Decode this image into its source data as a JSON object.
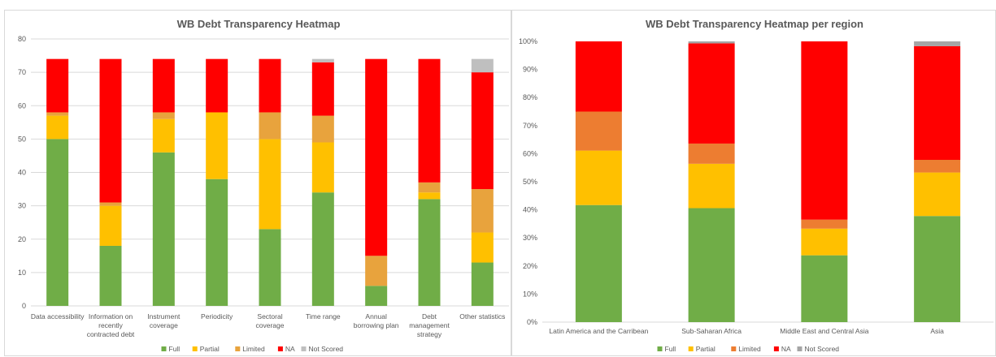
{
  "chart_data": [
    {
      "type": "bar",
      "stacked": true,
      "title": "WB Debt Transparency Heatmap",
      "xlabel": "",
      "ylabel": "",
      "ylim": [
        0,
        80
      ],
      "yticks": [
        0,
        10,
        20,
        30,
        40,
        50,
        60,
        70,
        80
      ],
      "grid": true,
      "legend": "bottom",
      "categories": [
        [
          "Data accessibility"
        ],
        [
          "Information on",
          "recently",
          "contracted debt"
        ],
        [
          "Instrument",
          "coverage"
        ],
        [
          "Periodicity"
        ],
        [
          "Sectoral",
          "coverage"
        ],
        [
          "Time range"
        ],
        [
          "Annual",
          "borrowing plan"
        ],
        [
          "Debt",
          "management",
          "strategy"
        ],
        [
          "Other statistics"
        ]
      ],
      "series": [
        {
          "name": "Full",
          "color": "#70ad47",
          "values": [
            50,
            18,
            46,
            38,
            23,
            34,
            6,
            32,
            13
          ]
        },
        {
          "name": "Partial",
          "color": "#ffc000",
          "values": [
            7,
            12,
            10,
            20,
            27,
            15,
            0,
            2,
            9
          ]
        },
        {
          "name": "Limited",
          "color": "#e8a33d",
          "values": [
            1,
            1,
            2,
            0,
            8,
            8,
            9,
            3,
            13
          ]
        },
        {
          "name": "NA",
          "color": "#ff0000",
          "values": [
            16,
            43,
            16,
            16,
            16,
            16,
            59,
            37,
            35
          ]
        },
        {
          "name": "Not Scored",
          "color": "#bfbfbf",
          "values": [
            0,
            0,
            0,
            0,
            0,
            1,
            0,
            0,
            4
          ]
        }
      ]
    },
    {
      "type": "bar",
      "stacked": true,
      "title": "WB Debt Transparency Heatmap per region",
      "xlabel": "",
      "ylabel": "",
      "ylim": [
        0,
        100
      ],
      "yticks": [
        "0%",
        "10%",
        "20%",
        "30%",
        "40%",
        "50%",
        "60%",
        "70%",
        "80%",
        "90%",
        "100%"
      ],
      "grid": false,
      "legend": "bottom",
      "categories": [
        [
          "Latin America and the Carribean"
        ],
        [
          "Sub-Saharan Africa"
        ],
        [
          "Middle East and Central Asia"
        ],
        [
          "Asia"
        ]
      ],
      "series": [
        {
          "name": "Full",
          "color": "#70ad47",
          "values": [
            41.7,
            40.6,
            23.8,
            37.8
          ]
        },
        {
          "name": "Partial",
          "color": "#ffc000",
          "values": [
            19.4,
            15.8,
            9.5,
            15.5
          ]
        },
        {
          "name": "Limited",
          "color": "#ed7d31",
          "values": [
            13.9,
            7.2,
            3.2,
            4.5
          ]
        },
        {
          "name": "NA",
          "color": "#ff0000",
          "values": [
            25.0,
            35.7,
            63.5,
            40.5
          ]
        },
        {
          "name": "Not Scored",
          "color": "#a5a5a5",
          "values": [
            0,
            0.7,
            0,
            1.7
          ]
        }
      ]
    }
  ]
}
